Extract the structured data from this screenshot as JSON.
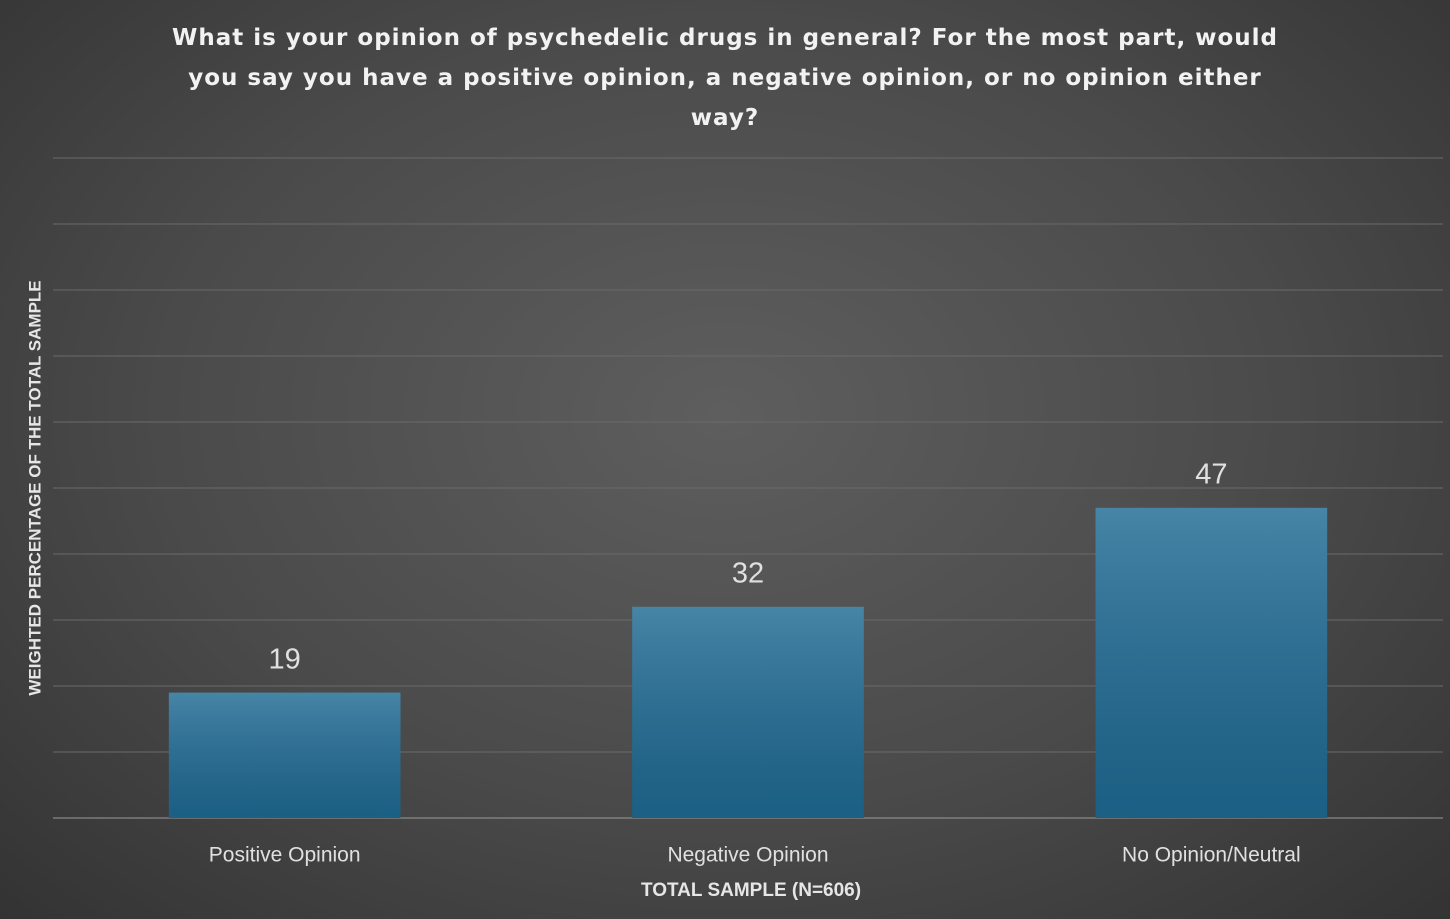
{
  "chart_data": {
    "type": "bar",
    "title": "What is your opinion of psychedelic drugs in general? For the most part, would you say you have a positive opinion, a negative opinion, or no opinion either way?",
    "x_label": "TOTAL SAMPLE (N=606)",
    "y_label": "WEIGHTED PERCENTAGE OF THE TOTAL SAMPLE",
    "categories": [
      "Positive Opinion",
      "Negative Opinion",
      "No Opinion/Neutral"
    ],
    "values": [
      19,
      32,
      47
    ],
    "color": "#1f6a93",
    "ylim": [
      0,
      100
    ],
    "yticks": [
      0,
      10,
      20,
      30,
      40,
      50,
      60,
      70,
      80,
      90,
      100
    ],
    "grid": true
  }
}
